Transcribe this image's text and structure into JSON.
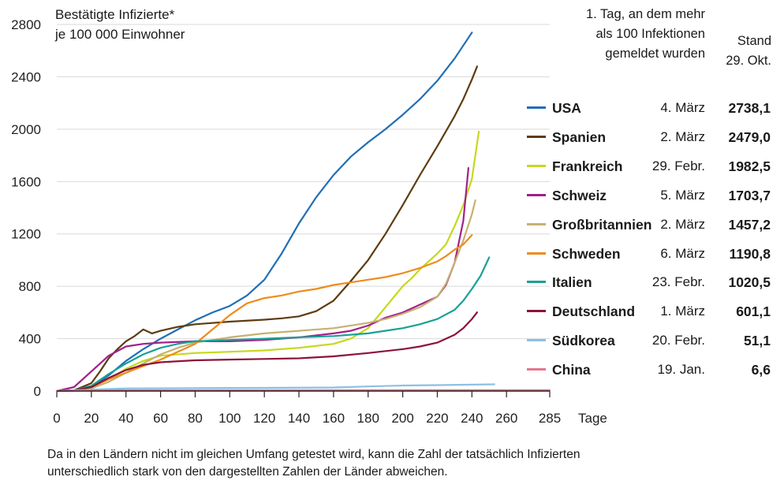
{
  "chart_data": {
    "type": "line",
    "ylabel_lines": [
      "Bestätigte Infizierte*",
      "je 100 000 Einwohner"
    ],
    "xlabel": "Tage",
    "xlim": [
      0,
      285
    ],
    "ylim": [
      0,
      2800
    ],
    "x_ticks": [
      0,
      20,
      40,
      60,
      80,
      100,
      120,
      140,
      160,
      180,
      200,
      220,
      240,
      260,
      285
    ],
    "y_ticks": [
      0,
      400,
      800,
      1200,
      1600,
      2000,
      2400,
      2800
    ],
    "grid": "horizontal",
    "legend_header": {
      "date_col": [
        "1. Tag, an dem mehr",
        "als 100 Infektionen",
        "gemeldet wurden"
      ],
      "value_col": [
        "Stand",
        "29. Okt."
      ]
    },
    "series": [
      {
        "name": "USA",
        "date": "4. März",
        "value": "2738,1",
        "color": "#1f6fb5",
        "x": [
          0,
          10,
          20,
          30,
          40,
          50,
          60,
          70,
          80,
          90,
          100,
          110,
          120,
          130,
          140,
          150,
          160,
          170,
          180,
          190,
          200,
          210,
          220,
          230,
          240
        ],
        "y": [
          0,
          5,
          30,
          120,
          230,
          320,
          400,
          470,
          540,
          600,
          650,
          730,
          850,
          1050,
          1280,
          1480,
          1650,
          1790,
          1900,
          2000,
          2110,
          2230,
          2370,
          2540,
          2738.1
        ]
      },
      {
        "name": "Spanien",
        "date": "2. März",
        "value": "2479,0",
        "color": "#5e3c10",
        "x": [
          0,
          10,
          20,
          25,
          30,
          35,
          40,
          45,
          50,
          55,
          60,
          70,
          80,
          100,
          120,
          130,
          140,
          150,
          160,
          170,
          180,
          190,
          200,
          210,
          220,
          230,
          235,
          240,
          243
        ],
        "y": [
          0,
          5,
          60,
          150,
          250,
          320,
          380,
          420,
          470,
          440,
          460,
          490,
          510,
          530,
          545,
          555,
          570,
          610,
          690,
          840,
          1000,
          1200,
          1420,
          1650,
          1870,
          2100,
          2230,
          2380,
          2479
        ]
      },
      {
        "name": "Frankreich",
        "date": "29. Febr.",
        "value": "1982,5",
        "color": "#c6d81c",
        "x": [
          0,
          10,
          20,
          30,
          40,
          50,
          60,
          80,
          100,
          120,
          140,
          160,
          170,
          180,
          185,
          190,
          195,
          200,
          205,
          210,
          215,
          220,
          225,
          230,
          235,
          240,
          244
        ],
        "y": [
          0,
          5,
          30,
          90,
          170,
          230,
          270,
          290,
          300,
          310,
          330,
          360,
          400,
          480,
          560,
          640,
          720,
          800,
          860,
          930,
          990,
          1050,
          1120,
          1260,
          1420,
          1620,
          1982.5
        ]
      },
      {
        "name": "Schweiz",
        "date": "5. März",
        "value": "1703,7",
        "color": "#a3208a",
        "x": [
          0,
          10,
          20,
          30,
          40,
          50,
          60,
          80,
          100,
          120,
          140,
          160,
          170,
          180,
          190,
          200,
          210,
          220,
          225,
          230,
          235,
          238
        ],
        "y": [
          0,
          30,
          150,
          270,
          340,
          360,
          370,
          380,
          380,
          390,
          410,
          440,
          460,
          500,
          560,
          600,
          660,
          720,
          810,
          980,
          1300,
          1703.7
        ]
      },
      {
        "name": "Großbritannien",
        "date": "2. März",
        "value": "1457,2",
        "color": "#c8b071",
        "x": [
          0,
          10,
          20,
          30,
          40,
          50,
          60,
          70,
          80,
          100,
          120,
          140,
          160,
          180,
          190,
          200,
          210,
          220,
          225,
          230,
          235,
          240,
          242
        ],
        "y": [
          0,
          5,
          20,
          70,
          140,
          210,
          280,
          330,
          370,
          410,
          440,
          460,
          480,
          520,
          550,
          590,
          640,
          720,
          820,
          980,
          1150,
          1350,
          1457.2
        ]
      },
      {
        "name": "Schweden",
        "date": "6. März",
        "value": "1190,8",
        "color": "#ee8c1c",
        "x": [
          0,
          10,
          20,
          30,
          40,
          50,
          60,
          70,
          80,
          90,
          100,
          110,
          120,
          130,
          140,
          150,
          160,
          170,
          180,
          190,
          200,
          210,
          220,
          225,
          230,
          235,
          240
        ],
        "y": [
          0,
          5,
          30,
          90,
          140,
          190,
          240,
          300,
          360,
          470,
          580,
          670,
          710,
          730,
          760,
          780,
          810,
          830,
          850,
          870,
          900,
          940,
          990,
          1030,
          1080,
          1120,
          1190.8
        ]
      },
      {
        "name": "Italien",
        "date": "23. Febr.",
        "value": "1020,5",
        "color": "#1aa096",
        "x": [
          0,
          10,
          20,
          30,
          40,
          50,
          60,
          70,
          80,
          100,
          120,
          140,
          160,
          180,
          200,
          210,
          220,
          230,
          235,
          240,
          245,
          250
        ],
        "y": [
          0,
          5,
          40,
          130,
          210,
          280,
          330,
          360,
          380,
          390,
          400,
          410,
          420,
          440,
          480,
          510,
          550,
          620,
          690,
          780,
          880,
          1020.5
        ]
      },
      {
        "name": "Deutschland",
        "date": "1. März",
        "value": "601,1",
        "color": "#8b1438",
        "x": [
          0,
          10,
          20,
          30,
          40,
          50,
          60,
          80,
          100,
          120,
          140,
          160,
          180,
          200,
          210,
          220,
          230,
          235,
          240,
          243
        ],
        "y": [
          0,
          5,
          30,
          100,
          160,
          200,
          220,
          235,
          240,
          245,
          250,
          265,
          290,
          320,
          340,
          370,
          430,
          480,
          550,
          601.1
        ]
      },
      {
        "name": "Südkorea",
        "date": "20. Febr.",
        "value": "51,1",
        "color": "#8ebfe6",
        "x": [
          0,
          20,
          40,
          80,
          120,
          160,
          180,
          200,
          220,
          240,
          253
        ],
        "y": [
          0,
          10,
          20,
          22,
          24,
          27,
          35,
          42,
          45,
          49,
          51.1
        ]
      },
      {
        "name": "China",
        "date": "19. Jan.",
        "value": "6,6",
        "color": "#e6768a",
        "x": [
          0,
          20,
          40,
          100,
          200,
          285
        ],
        "y": [
          0,
          5,
          6,
          6.3,
          6.5,
          6.6
        ]
      }
    ]
  },
  "footnote_lines": [
    "Da in den Ländern nicht im gleichen Umfang getestet wird, kann die Zahl der tatsächlich Infizierten",
    "unterschiedlich stark von den dargestellten Zahlen der Länder abweichen."
  ]
}
